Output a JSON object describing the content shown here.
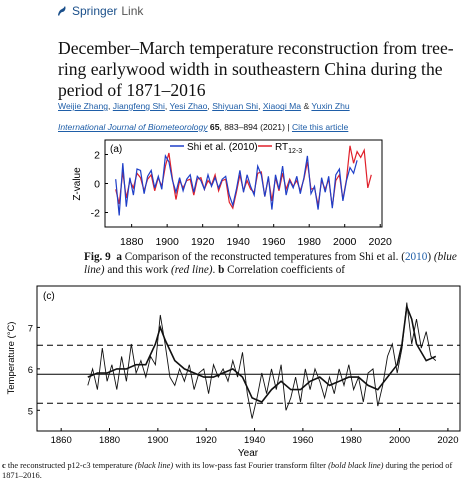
{
  "header": {
    "logo_text": "Springer",
    "logo_sub": "Link",
    "title": "December–March temperature reconstruction from tree-ring earlywood width in southeastern China during the period of 1871–2016"
  },
  "authors": [
    "Weijie Zhang",
    "Jiangfeng Shi",
    "Yesi Zhao",
    "Shiyuan Shi",
    "Xiaoqi Ma",
    "Yuxin Zhu"
  ],
  "journal": {
    "name": "International Journal of Biometeorology",
    "volume": "65",
    "pages": ", 883–894 (2021)",
    "separator": "|",
    "cite": "Cite this article"
  },
  "captions": {
    "fig9_label": "Fig. 9",
    "fig9_a": "a",
    "fig9_text1": " Comparison of the reconstructed temperatures from Shi et al. (",
    "fig9_year": "2010",
    "fig9_text2": ") ",
    "fig9_blue": "(blue line)",
    "fig9_text3": " and this work ",
    "fig9_red": "(red line)",
    "fig9_text4": ". ",
    "fig9_b": "b",
    "fig9_text5": " Correlation coefficients of",
    "c_text_1": "c",
    "c_text_2": " the reconstructed p12-c3 temperature ",
    "c_text_3": "(black line)",
    "c_text_4": " with its low-pass fast Fourier transform filter ",
    "c_text_5": "(bold black line)",
    "c_text_6": " during the period of 1871–2016."
  },
  "chart_data": [
    {
      "type": "line",
      "panel_label": "(a)",
      "ylabel": "Z-value",
      "xlim": [
        1865,
        2021
      ],
      "ylim": [
        -3,
        3
      ],
      "xticks": [
        1880,
        1900,
        1920,
        1940,
        1960,
        1980,
        2000,
        2020
      ],
      "yticks": [
        -2,
        0,
        2
      ],
      "legend_position": "top-right",
      "colors": {
        "Shi et al. (2010)": "#1f3fc8",
        "RT12-3": "#e0202a"
      },
      "legend": [
        "Shi et al. (2010)",
        "RT"
      ],
      "legend_sub": "12-3",
      "series": [
        {
          "name": "Shi et al. (2010)",
          "x": [
            1871,
            1873,
            1875,
            1877,
            1879,
            1881,
            1883,
            1885,
            1887,
            1889,
            1891,
            1893,
            1895,
            1897,
            1899,
            1901,
            1903,
            1905,
            1907,
            1909,
            1911,
            1913,
            1915,
            1917,
            1919,
            1921,
            1923,
            1925,
            1927,
            1929,
            1931,
            1933,
            1935,
            1937,
            1939,
            1941,
            1943,
            1945,
            1947,
            1949,
            1951,
            1953,
            1955,
            1957,
            1959,
            1961,
            1963,
            1965,
            1967,
            1969,
            1971,
            1973,
            1975,
            1977,
            1979,
            1981,
            1983,
            1985,
            1987,
            1989,
            1991,
            1993,
            1995,
            1997,
            1999,
            2001,
            2003,
            2005,
            2007
          ],
          "y": [
            0.3,
            -2.2,
            1.4,
            -1.6,
            0.4,
            -0.8,
            1.0,
            0.9,
            -0.7,
            0.5,
            0.9,
            -0.3,
            0.5,
            -0.4,
            1.9,
            1.5,
            0.2,
            -0.6,
            0.4,
            -0.5,
            0.3,
            0.6,
            -0.6,
            0.5,
            0.2,
            -0.4,
            0.6,
            -0.2,
            0.4,
            -0.3,
            0.3,
            0.5,
            -0.8,
            -1.5,
            -0.4,
            0.9,
            -0.6,
            0.6,
            -0.2,
            -0.8,
            1.2,
            0.6,
            -0.9,
            0.5,
            -1.8,
            0.6,
            -0.4,
            1.2,
            -0.8,
            0.2,
            -0.3,
            0.5,
            -0.7,
            0.4,
            1.9,
            -0.7,
            -0.2,
            -1.8,
            0.4,
            -0.6,
            0.5,
            -1.7,
            0.6,
            1.0,
            -1.2,
            0.2,
            1.1,
            0.7,
            1.6
          ]
        },
        {
          "name": "RT12-3",
          "x": [
            1871,
            1873,
            1875,
            1877,
            1879,
            1881,
            1883,
            1885,
            1887,
            1889,
            1891,
            1893,
            1895,
            1897,
            1899,
            1901,
            1903,
            1905,
            1907,
            1909,
            1911,
            1913,
            1915,
            1917,
            1919,
            1921,
            1923,
            1925,
            1927,
            1929,
            1931,
            1933,
            1935,
            1937,
            1939,
            1941,
            1943,
            1945,
            1947,
            1949,
            1951,
            1953,
            1955,
            1957,
            1959,
            1961,
            1963,
            1965,
            1967,
            1969,
            1971,
            1973,
            1975,
            1977,
            1979,
            1981,
            1983,
            1985,
            1987,
            1989,
            1991,
            1993,
            1995,
            1997,
            1999,
            2001,
            2003,
            2005,
            2007,
            2009,
            2011,
            2013,
            2015
          ],
          "y": [
            -0.4,
            -1.4,
            0.8,
            -1.0,
            0.2,
            -0.3,
            0.7,
            0.4,
            -0.5,
            0.3,
            0.6,
            -0.5,
            0.4,
            -0.2,
            1.2,
            2.1,
            0.3,
            -1.1,
            0.2,
            -0.3,
            0.2,
            0.3,
            -0.8,
            0.3,
            0.4,
            -0.4,
            0.2,
            -0.1,
            0.6,
            -0.5,
            0.2,
            0.3,
            -1.3,
            -1.7,
            -0.6,
            0.6,
            -0.5,
            0.2,
            -0.4,
            -0.6,
            0.7,
            0.8,
            -0.9,
            0.4,
            -1.2,
            0.4,
            -0.5,
            0.7,
            -0.4,
            0.3,
            -0.2,
            0.2,
            -0.5,
            0.3,
            1.5,
            -0.4,
            -0.3,
            -1.5,
            0.2,
            -0.4,
            0.3,
            -1.6,
            0.2,
            0.6,
            -1.1,
            0.3,
            2.6,
            1.4,
            2.2,
            1.8,
            2.3,
            -0.3,
            0.6
          ]
        }
      ]
    },
    {
      "type": "line",
      "panel_label": "(c)",
      "xlabel": "Year",
      "ylabel": "Temperature (°C)",
      "xlim": [
        1850,
        2025
      ],
      "ylim": [
        4.5,
        8.0
      ],
      "xticks": [
        1860,
        1880,
        1900,
        1920,
        1940,
        1960,
        1980,
        2000,
        2020
      ],
      "yticks": [
        5,
        6,
        7
      ],
      "mean_line": 5.87,
      "upper_dashed": 6.57,
      "lower_dashed": 5.17,
      "series": [
        {
          "name": "",
          "x": [
            1871,
            1873,
            1875,
            1877,
            1879,
            1881,
            1883,
            1885,
            1887,
            1889,
            1891,
            1893,
            1895,
            1897,
            1899,
            1901,
            1903,
            1905,
            1907,
            1909,
            1911,
            1913,
            1915,
            1917,
            1919,
            1921,
            1923,
            1925,
            1927,
            1929,
            1931,
            1933,
            1935,
            1937,
            1939,
            1941,
            1943,
            1945,
            1947,
            1949,
            1951,
            1953,
            1955,
            1957,
            1959,
            1961,
            1963,
            1965,
            1967,
            1969,
            1971,
            1973,
            1975,
            1977,
            1979,
            1981,
            1983,
            1985,
            1987,
            1989,
            1991,
            1993,
            1995,
            1997,
            1999,
            2001,
            2003,
            2005,
            2007,
            2009,
            2011,
            2013,
            2015
          ],
          "y": [
            5.6,
            6.0,
            5.5,
            6.5,
            5.7,
            6.1,
            5.5,
            6.3,
            5.7,
            6.6,
            5.9,
            6.2,
            5.8,
            6.3,
            6.1,
            7.3,
            6.6,
            5.8,
            5.6,
            6.0,
            5.7,
            6.1,
            5.5,
            5.9,
            6.0,
            5.4,
            6.1,
            5.8,
            6.0,
            5.7,
            6.2,
            5.8,
            6.4,
            5.4,
            4.8,
            5.3,
            5.9,
            5.4,
            6.0,
            5.5,
            6.1,
            5.0,
            5.3,
            5.8,
            5.2,
            6.0,
            5.5,
            6.0,
            5.7,
            5.3,
            5.8,
            5.4,
            6.0,
            5.6,
            6.1,
            5.5,
            5.8,
            5.2,
            5.9,
            6.0,
            5.1,
            5.6,
            6.3,
            6.6,
            5.9,
            6.5,
            7.6,
            6.6,
            7.2,
            6.5,
            6.9,
            6.3,
            6.2
          ]
        },
        {
          "name": "",
          "x": [
            1871,
            1875,
            1879,
            1883,
            1887,
            1891,
            1895,
            1899,
            1901,
            1903,
            1907,
            1911,
            1915,
            1919,
            1923,
            1927,
            1931,
            1935,
            1939,
            1943,
            1947,
            1951,
            1955,
            1959,
            1963,
            1967,
            1971,
            1975,
            1979,
            1983,
            1987,
            1991,
            1995,
            1999,
            2001,
            2003,
            2005,
            2007,
            2011,
            2015
          ],
          "y": [
            5.8,
            5.9,
            5.9,
            6.0,
            6.0,
            6.1,
            6.1,
            6.6,
            7.0,
            6.7,
            6.2,
            6.0,
            5.9,
            5.8,
            5.8,
            5.9,
            6.0,
            5.8,
            5.3,
            5.2,
            5.5,
            5.7,
            5.5,
            5.5,
            5.7,
            5.8,
            5.6,
            5.7,
            5.8,
            5.8,
            5.6,
            5.5,
            5.8,
            6.1,
            6.6,
            7.5,
            7.2,
            6.6,
            6.2,
            6.3
          ]
        }
      ]
    }
  ]
}
